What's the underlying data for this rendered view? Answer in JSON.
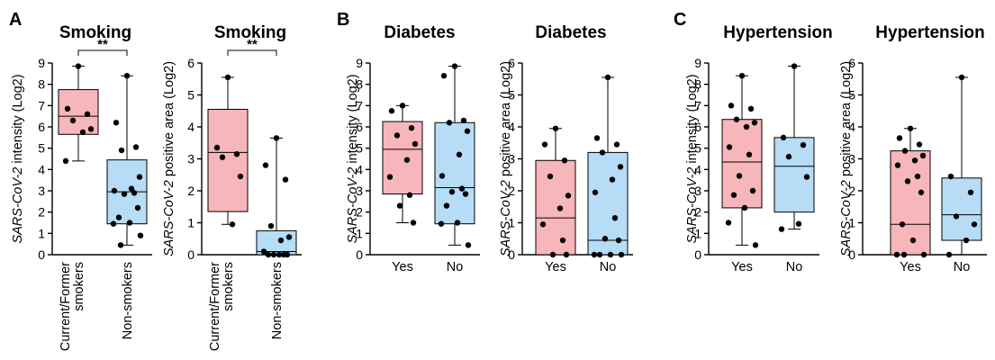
{
  "panels": [
    {
      "letter": "A"
    },
    {
      "letter": "B"
    },
    {
      "letter": "C"
    }
  ],
  "colors": {
    "red_box": "#f7b6ba",
    "blue_box": "#b6dcf6",
    "stroke": "#000000",
    "point": "#000000"
  },
  "chart_data": [
    {
      "type": "box",
      "panel": "A",
      "title": "Smoking",
      "ylabel_italic": "SARS-CoV-2",
      "ylabel_rest": " intensity (Log2)",
      "ylim": [
        0,
        9
      ],
      "yticks": [
        0,
        1,
        2,
        3,
        4,
        5,
        6,
        7,
        8,
        9
      ],
      "rotated_categories": true,
      "significance": "**",
      "groups": [
        {
          "category": "Current/Former smokers",
          "label_lines": [
            "Current/Former",
            "smokers"
          ],
          "color": "red",
          "min": 4.4,
          "q1": 5.65,
          "median": 6.5,
          "q3": 7.75,
          "max": 8.85,
          "points": [
            8.85,
            6.85,
            6.6,
            6.3,
            5.9,
            5.75,
            4.4
          ]
        },
        {
          "category": "Non-smokers",
          "label_lines": [
            "Non-smokers"
          ],
          "color": "blue",
          "min": 0.45,
          "q1": 1.45,
          "median": 2.95,
          "q3": 4.45,
          "max": 8.4,
          "points": [
            8.4,
            6.2,
            5.05,
            4.9,
            3.65,
            3.1,
            3.0,
            2.9,
            2.85,
            2.2,
            1.75,
            1.5,
            1.45,
            0.9,
            0.45
          ]
        }
      ]
    },
    {
      "type": "box",
      "panel": "A",
      "title": "Smoking",
      "ylabel_italic": "SARS-CoV-2",
      "ylabel_rest": " positive area (Log2)",
      "ylim": [
        0,
        6
      ],
      "yticks": [
        0,
        1,
        2,
        3,
        4,
        5,
        6
      ],
      "rotated_categories": true,
      "significance": "**",
      "groups": [
        {
          "category": "Current/Former smokers",
          "label_lines": [
            "Current/Former",
            "smokers"
          ],
          "color": "red",
          "min": 0.95,
          "q1": 1.35,
          "median": 3.2,
          "q3": 4.55,
          "max": 5.55,
          "points": [
            5.55,
            3.35,
            3.15,
            3.05,
            2.45,
            0.95
          ]
        },
        {
          "category": "Non-smokers",
          "label_lines": [
            "Non-smokers"
          ],
          "color": "blue",
          "min": 0.0,
          "q1": 0.0,
          "median": 0.1,
          "q3": 0.75,
          "max": 3.65,
          "points": [
            3.65,
            2.8,
            2.35,
            0.9,
            0.55,
            0.45,
            0.1,
            0,
            0,
            0,
            0,
            0
          ]
        }
      ]
    },
    {
      "type": "box",
      "panel": "B",
      "title": "Diabetes",
      "ylabel_italic": "SARS-CoV-2",
      "ylabel_rest": " intensity (Log2)",
      "ylim": [
        0,
        9
      ],
      "yticks": [
        0,
        1,
        2,
        3,
        4,
        5,
        6,
        7,
        8,
        9
      ],
      "rotated_categories": false,
      "significance": "",
      "groups": [
        {
          "category": "Yes",
          "label_lines": [
            "Yes"
          ],
          "color": "red",
          "min": 1.5,
          "q1": 2.85,
          "median": 4.95,
          "q3": 6.25,
          "max": 7.0,
          "points": [
            7.0,
            6.75,
            5.95,
            5.6,
            5.2,
            4.45,
            3.65,
            2.8,
            2.3,
            1.5
          ]
        },
        {
          "category": "No",
          "label_lines": [
            "No"
          ],
          "color": "blue",
          "min": 0.45,
          "q1": 1.45,
          "median": 3.15,
          "q3": 6.2,
          "max": 8.85,
          "points": [
            8.85,
            8.4,
            6.3,
            6.2,
            5.8,
            4.7,
            3.7,
            3.1,
            2.95,
            2.85,
            2.3,
            1.5,
            1.45,
            0.45
          ]
        }
      ]
    },
    {
      "type": "box",
      "panel": "B",
      "title": "Diabetes",
      "ylabel_italic": "SARS-CoV-2",
      "ylabel_rest": " positive area (Log2)",
      "ylim": [
        0,
        6
      ],
      "yticks": [
        0,
        1,
        2,
        3,
        4,
        5,
        6
      ],
      "rotated_categories": false,
      "significance": "",
      "groups": [
        {
          "category": "Yes",
          "label_lines": [
            "Yes"
          ],
          "color": "red",
          "min": 0.0,
          "q1": 0.0,
          "median": 1.15,
          "q3": 2.95,
          "max": 3.95,
          "points": [
            3.95,
            3.45,
            2.95,
            2.45,
            1.85,
            1.45,
            0.95,
            0.45,
            0,
            0
          ]
        },
        {
          "category": "No",
          "label_lines": [
            "No"
          ],
          "color": "blue",
          "min": 0.0,
          "q1": 0.0,
          "median": 0.45,
          "q3": 3.2,
          "max": 5.55,
          "points": [
            5.55,
            3.65,
            3.45,
            3.2,
            2.75,
            2.35,
            1.95,
            1.15,
            0.5,
            0.45,
            0,
            0,
            0,
            0
          ]
        }
      ]
    },
    {
      "type": "box",
      "panel": "C",
      "title": "Hypertension",
      "ylabel_italic": "SARS-CoV-2",
      "ylabel_rest": " intensity (Log2)",
      "ylim": [
        0,
        9
      ],
      "yticks": [
        0,
        1,
        2,
        3,
        4,
        5,
        6,
        7,
        8,
        9
      ],
      "rotated_categories": false,
      "significance": "",
      "groups": [
        {
          "category": "Yes",
          "label_lines": [
            "Yes"
          ],
          "color": "red",
          "min": 0.45,
          "q1": 2.2,
          "median": 4.35,
          "q3": 6.35,
          "max": 8.4,
          "points": [
            8.4,
            7.0,
            6.85,
            6.35,
            6.2,
            6.0,
            5.05,
            4.7,
            3.7,
            3.0,
            2.8,
            2.2,
            1.5,
            0.45
          ]
        },
        {
          "category": "No",
          "label_lines": [
            "No"
          ],
          "color": "blue",
          "min": 1.2,
          "q1": 2.0,
          "median": 4.15,
          "q3": 5.5,
          "max": 8.85,
          "points": [
            8.85,
            5.5,
            5.15,
            4.6,
            3.65,
            1.45,
            1.2
          ]
        }
      ]
    },
    {
      "type": "box",
      "panel": "C",
      "title": "Hypertension",
      "ylabel_italic": "SARS-CoV-2",
      "ylabel_rest": " positive area (Log2)",
      "ylim": [
        0,
        6
      ],
      "yticks": [
        0,
        1,
        2,
        3,
        4,
        5,
        6
      ],
      "rotated_categories": false,
      "significance": "",
      "groups": [
        {
          "category": "Yes",
          "label_lines": [
            "Yes"
          ],
          "color": "red",
          "min": 0.0,
          "q1": 0.0,
          "median": 0.95,
          "q3": 3.25,
          "max": 3.95,
          "points": [
            3.95,
            3.65,
            3.45,
            3.25,
            3.1,
            2.95,
            2.8,
            2.45,
            2.3,
            1.95,
            0.95,
            0.45,
            0,
            0,
            0
          ]
        },
        {
          "category": "No",
          "label_lines": [
            "No"
          ],
          "color": "blue",
          "min": 0.0,
          "q1": 0.45,
          "median": 1.25,
          "q3": 2.4,
          "max": 5.55,
          "points": [
            5.55,
            2.45,
            1.95,
            1.2,
            0.95,
            0.45,
            0
          ]
        }
      ]
    }
  ]
}
